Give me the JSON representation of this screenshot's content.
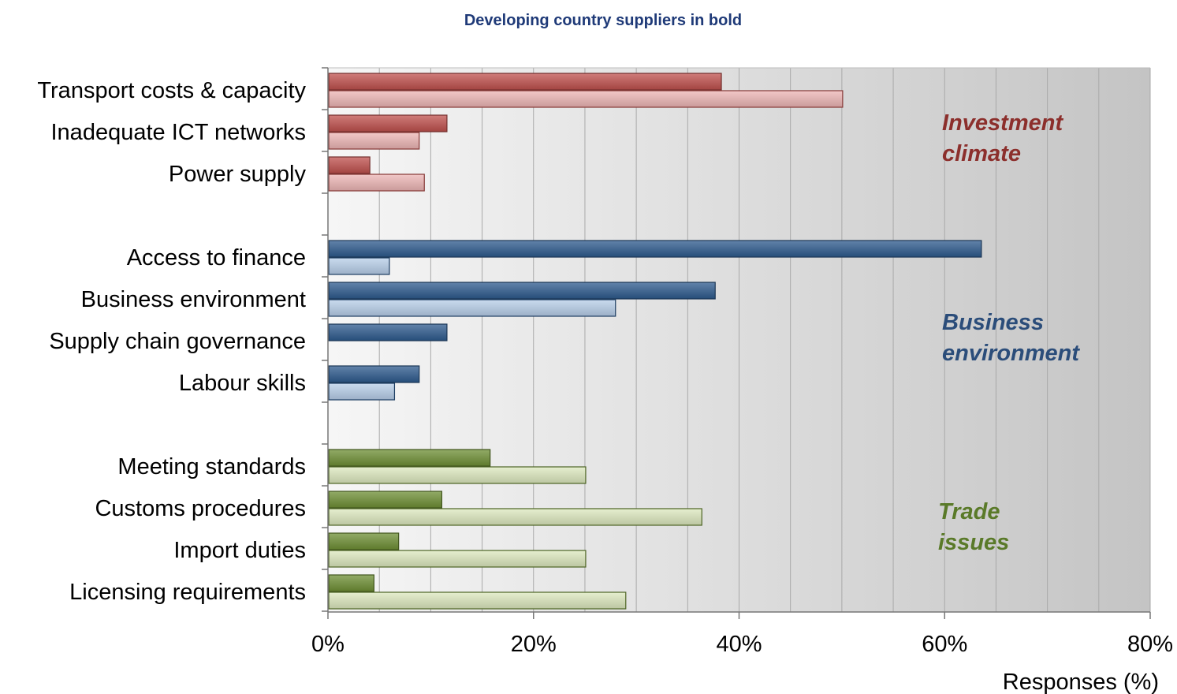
{
  "chart_data": {
    "type": "bar",
    "orientation": "horizontal",
    "title": "",
    "subtitle": "Developing country suppliers in bold",
    "xlabel": "Responses (%)",
    "ylabel": "",
    "xlim": [
      0,
      80
    ],
    "x_ticks": [
      "0%",
      "20%",
      "40%",
      "60%",
      "80%"
    ],
    "grid": true,
    "legend": "none",
    "groups": [
      {
        "name": "Investment climate",
        "color_dark": "#c0504d",
        "color_light": "#eeb6b5",
        "text_color": "#8c2f2c",
        "categories": [
          {
            "label": "Transport costs & capacity",
            "values": [
              38.2,
              50.0
            ]
          },
          {
            "label": "Inadequate ICT networks",
            "values": [
              11.5,
              8.8
            ]
          },
          {
            "label": "Power supply",
            "values": [
              4.0,
              9.3
            ]
          }
        ]
      },
      {
        "name": "Business environment",
        "color_dark": "#2d5a8e",
        "color_light": "#b8cfea",
        "text_color": "#2b4d7a",
        "categories": [
          {
            "label": "Access to finance",
            "values": [
              63.5,
              5.9
            ]
          },
          {
            "label": "Business environment",
            "values": [
              37.6,
              27.9
            ]
          },
          {
            "label": "Supply chain governance",
            "values": [
              11.5,
              null
            ]
          },
          {
            "label": "Labour skills",
            "values": [
              8.8,
              6.4
            ]
          }
        ]
      },
      {
        "name": "Trade issues",
        "color_dark": "#6e8f34",
        "color_light": "#dde9bf",
        "text_color": "#5a7a29",
        "categories": [
          {
            "label": "Meeting standards",
            "values": [
              15.7,
              25.0
            ]
          },
          {
            "label": "Customs procedures",
            "values": [
              11.0,
              36.3
            ]
          },
          {
            "label": "Import duties",
            "values": [
              6.8,
              25.0
            ]
          },
          {
            "label": "Licensing requirements",
            "values": [
              4.4,
              28.9
            ]
          }
        ]
      }
    ],
    "group_labels": [
      {
        "line1": "Investment",
        "line2": "climate",
        "color": "#8c2f2c"
      },
      {
        "line1": "Business",
        "line2": "environment",
        "color": "#2b4d7a"
      },
      {
        "line1": "Trade",
        "line2": "issues",
        "color": "#5a7a29"
      }
    ]
  }
}
